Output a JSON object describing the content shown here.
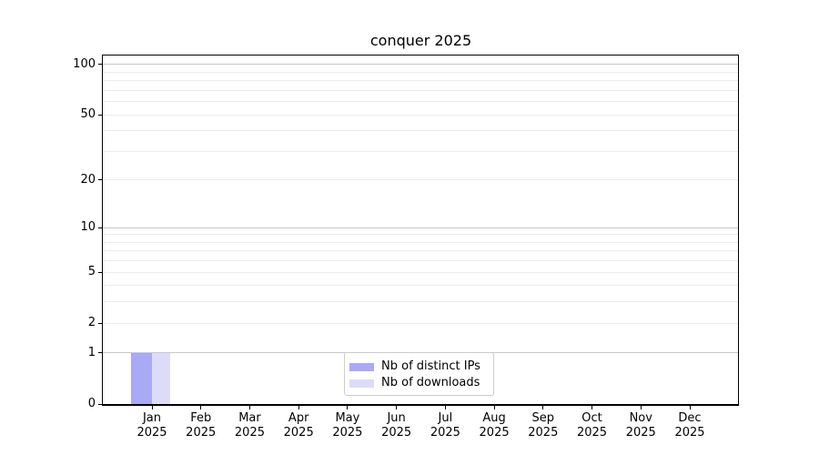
{
  "title": "conquer 2025",
  "chart_data": {
    "type": "bar",
    "title": "conquer 2025",
    "categories": [
      "Jan",
      "Feb",
      "Mar",
      "Apr",
      "May",
      "Jun",
      "Jul",
      "Aug",
      "Sep",
      "Oct",
      "Nov",
      "Dec"
    ],
    "x_tick_year": "2025",
    "series": [
      {
        "name": "Nb of distinct IPs",
        "color": "#a9a9f6",
        "values": [
          1,
          0,
          0,
          0,
          0,
          0,
          0,
          0,
          0,
          0,
          0,
          0
        ]
      },
      {
        "name": "Nb of downloads",
        "color": "#dcdcf8",
        "values": [
          1,
          0,
          0,
          0,
          0,
          0,
          0,
          0,
          0,
          0,
          0,
          0
        ]
      }
    ],
    "y_scale": "log1p",
    "ylim": [
      0,
      113
    ],
    "y_tick_values": [
      0,
      1,
      2,
      5,
      10,
      20,
      50,
      100
    ],
    "y_tick_labels": [
      "0",
      "1",
      "2",
      "5",
      "10",
      "20",
      "50",
      "100"
    ],
    "y_decade_gridlines": [
      1,
      10,
      100
    ],
    "y_minor_gridlines": [
      2,
      3,
      4,
      5,
      6,
      7,
      8,
      9,
      20,
      30,
      40,
      50,
      60,
      70,
      80,
      90
    ],
    "grid": true,
    "legend_position": "lower center",
    "xlabel": "",
    "ylabel": ""
  },
  "colors": {
    "background": "#ffffff",
    "axis": "#000000",
    "grid_major": "#c9c9c9",
    "grid_minor": "#ececec",
    "legend_border": "#cccccc",
    "bar_distinct_ips": "#a9a9f6",
    "bar_downloads": "#dcdcf8"
  }
}
